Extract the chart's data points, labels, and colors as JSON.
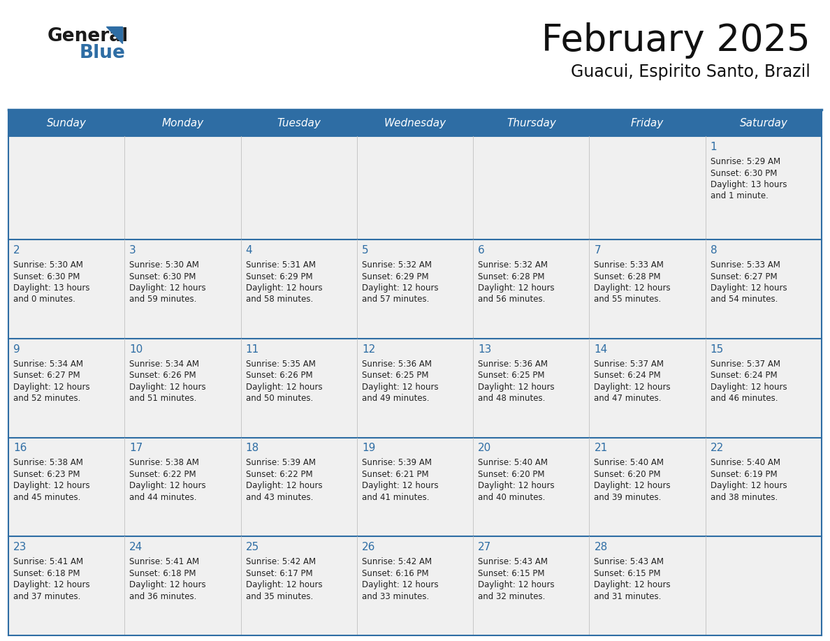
{
  "title": "February 2025",
  "subtitle": "Guacui, Espirito Santo, Brazil",
  "days_of_week": [
    "Sunday",
    "Monday",
    "Tuesday",
    "Wednesday",
    "Thursday",
    "Friday",
    "Saturday"
  ],
  "header_bg": "#2E6DA4",
  "header_text_color": "#FFFFFF",
  "cell_bg": "#F0F0F0",
  "cell_text_color": "#222222",
  "day_num_color": "#2E6DA4",
  "border_color": "#2E6DA4",
  "logo_general_color": "#1a1a1a",
  "logo_blue_color": "#2E6DA4",
  "calendar_data": [
    [
      null,
      null,
      null,
      null,
      null,
      null,
      {
        "day": 1,
        "sunrise": "5:29 AM",
        "sunset": "6:30 PM",
        "daylight_h": "13 hours",
        "daylight_m": "and 1 minute."
      }
    ],
    [
      {
        "day": 2,
        "sunrise": "5:30 AM",
        "sunset": "6:30 PM",
        "daylight_h": "13 hours",
        "daylight_m": "and 0 minutes."
      },
      {
        "day": 3,
        "sunrise": "5:30 AM",
        "sunset": "6:30 PM",
        "daylight_h": "12 hours",
        "daylight_m": "and 59 minutes."
      },
      {
        "day": 4,
        "sunrise": "5:31 AM",
        "sunset": "6:29 PM",
        "daylight_h": "12 hours",
        "daylight_m": "and 58 minutes."
      },
      {
        "day": 5,
        "sunrise": "5:32 AM",
        "sunset": "6:29 PM",
        "daylight_h": "12 hours",
        "daylight_m": "and 57 minutes."
      },
      {
        "day": 6,
        "sunrise": "5:32 AM",
        "sunset": "6:28 PM",
        "daylight_h": "12 hours",
        "daylight_m": "and 56 minutes."
      },
      {
        "day": 7,
        "sunrise": "5:33 AM",
        "sunset": "6:28 PM",
        "daylight_h": "12 hours",
        "daylight_m": "and 55 minutes."
      },
      {
        "day": 8,
        "sunrise": "5:33 AM",
        "sunset": "6:27 PM",
        "daylight_h": "12 hours",
        "daylight_m": "and 54 minutes."
      }
    ],
    [
      {
        "day": 9,
        "sunrise": "5:34 AM",
        "sunset": "6:27 PM",
        "daylight_h": "12 hours",
        "daylight_m": "and 52 minutes."
      },
      {
        "day": 10,
        "sunrise": "5:34 AM",
        "sunset": "6:26 PM",
        "daylight_h": "12 hours",
        "daylight_m": "and 51 minutes."
      },
      {
        "day": 11,
        "sunrise": "5:35 AM",
        "sunset": "6:26 PM",
        "daylight_h": "12 hours",
        "daylight_m": "and 50 minutes."
      },
      {
        "day": 12,
        "sunrise": "5:36 AM",
        "sunset": "6:25 PM",
        "daylight_h": "12 hours",
        "daylight_m": "and 49 minutes."
      },
      {
        "day": 13,
        "sunrise": "5:36 AM",
        "sunset": "6:25 PM",
        "daylight_h": "12 hours",
        "daylight_m": "and 48 minutes."
      },
      {
        "day": 14,
        "sunrise": "5:37 AM",
        "sunset": "6:24 PM",
        "daylight_h": "12 hours",
        "daylight_m": "and 47 minutes."
      },
      {
        "day": 15,
        "sunrise": "5:37 AM",
        "sunset": "6:24 PM",
        "daylight_h": "12 hours",
        "daylight_m": "and 46 minutes."
      }
    ],
    [
      {
        "day": 16,
        "sunrise": "5:38 AM",
        "sunset": "6:23 PM",
        "daylight_h": "12 hours",
        "daylight_m": "and 45 minutes."
      },
      {
        "day": 17,
        "sunrise": "5:38 AM",
        "sunset": "6:22 PM",
        "daylight_h": "12 hours",
        "daylight_m": "and 44 minutes."
      },
      {
        "day": 18,
        "sunrise": "5:39 AM",
        "sunset": "6:22 PM",
        "daylight_h": "12 hours",
        "daylight_m": "and 43 minutes."
      },
      {
        "day": 19,
        "sunrise": "5:39 AM",
        "sunset": "6:21 PM",
        "daylight_h": "12 hours",
        "daylight_m": "and 41 minutes."
      },
      {
        "day": 20,
        "sunrise": "5:40 AM",
        "sunset": "6:20 PM",
        "daylight_h": "12 hours",
        "daylight_m": "and 40 minutes."
      },
      {
        "day": 21,
        "sunrise": "5:40 AM",
        "sunset": "6:20 PM",
        "daylight_h": "12 hours",
        "daylight_m": "and 39 minutes."
      },
      {
        "day": 22,
        "sunrise": "5:40 AM",
        "sunset": "6:19 PM",
        "daylight_h": "12 hours",
        "daylight_m": "and 38 minutes."
      }
    ],
    [
      {
        "day": 23,
        "sunrise": "5:41 AM",
        "sunset": "6:18 PM",
        "daylight_h": "12 hours",
        "daylight_m": "and 37 minutes."
      },
      {
        "day": 24,
        "sunrise": "5:41 AM",
        "sunset": "6:18 PM",
        "daylight_h": "12 hours",
        "daylight_m": "and 36 minutes."
      },
      {
        "day": 25,
        "sunrise": "5:42 AM",
        "sunset": "6:17 PM",
        "daylight_h": "12 hours",
        "daylight_m": "and 35 minutes."
      },
      {
        "day": 26,
        "sunrise": "5:42 AM",
        "sunset": "6:16 PM",
        "daylight_h": "12 hours",
        "daylight_m": "and 33 minutes."
      },
      {
        "day": 27,
        "sunrise": "5:43 AM",
        "sunset": "6:15 PM",
        "daylight_h": "12 hours",
        "daylight_m": "and 32 minutes."
      },
      {
        "day": 28,
        "sunrise": "5:43 AM",
        "sunset": "6:15 PM",
        "daylight_h": "12 hours",
        "daylight_m": "and 31 minutes."
      },
      null
    ]
  ]
}
